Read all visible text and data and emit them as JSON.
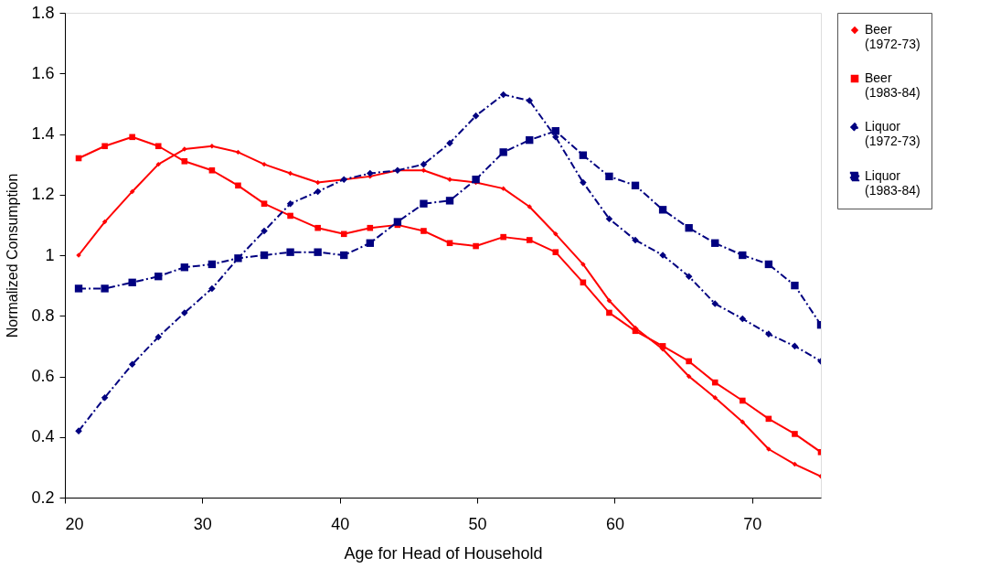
{
  "chart_data": {
    "type": "line",
    "xlabel": "Age for Head of Household",
    "ylabel": "Normalized Consumption",
    "x": [
      21.0,
      22.9,
      24.9,
      26.8,
      28.7,
      30.7,
      32.6,
      34.5,
      36.4,
      38.4,
      40.3,
      42.2,
      44.2,
      46.1,
      48.0,
      49.9,
      51.9,
      53.8,
      55.7,
      57.7,
      59.6,
      61.5,
      63.5,
      65.4,
      67.3,
      69.3,
      71.2,
      73.1,
      75.0
    ],
    "xlim": [
      20,
      75
    ],
    "xticks": [
      20,
      30,
      40,
      50,
      60,
      70
    ],
    "ylim": [
      0.2,
      1.8
    ],
    "yticks": [
      0.2,
      0.4,
      0.6,
      0.8,
      1,
      1.2,
      1.4,
      1.6,
      1.8
    ],
    "grid": false,
    "legend": "right",
    "series": [
      {
        "name": "Beer (1972-73)",
        "color": "#ff0000",
        "marker": "diamond",
        "line_style": "solid",
        "values": [
          1.0,
          1.11,
          1.21,
          1.3,
          1.35,
          1.36,
          1.34,
          1.3,
          1.27,
          1.24,
          1.25,
          1.26,
          1.28,
          1.28,
          1.25,
          1.24,
          1.22,
          1.16,
          1.07,
          0.97,
          0.85,
          0.76,
          0.69,
          0.6,
          0.53,
          0.45,
          0.36,
          0.31,
          0.27
        ]
      },
      {
        "name": "Beer (1983-84)",
        "color": "#ff0000",
        "marker": "square",
        "line_style": "solid",
        "values": [
          1.32,
          1.36,
          1.39,
          1.36,
          1.31,
          1.28,
          1.23,
          1.17,
          1.13,
          1.09,
          1.07,
          1.09,
          1.1,
          1.08,
          1.04,
          1.03,
          1.06,
          1.05,
          1.01,
          0.91,
          0.81,
          0.75,
          0.7,
          0.65,
          0.58,
          0.52,
          0.46,
          0.41,
          0.35
        ]
      },
      {
        "name": "Liquor (1972-73)",
        "color": "#000080",
        "marker": "diamond",
        "line_style": "dashed",
        "values": [
          0.42,
          0.53,
          0.64,
          0.73,
          0.81,
          0.89,
          0.99,
          1.08,
          1.17,
          1.21,
          1.25,
          1.27,
          1.28,
          1.3,
          1.37,
          1.46,
          1.53,
          1.51,
          1.39,
          1.24,
          1.12,
          1.05,
          1.0,
          0.93,
          0.84,
          0.79,
          0.74,
          0.7,
          0.65
        ]
      },
      {
        "name": "Liquor (1983-84)",
        "color": "#000080",
        "marker": "square",
        "line_style": "dashed",
        "values": [
          0.89,
          0.89,
          0.91,
          0.93,
          0.96,
          0.97,
          0.99,
          1.0,
          1.01,
          1.01,
          1.0,
          1.04,
          1.11,
          1.17,
          1.18,
          1.25,
          1.34,
          1.38,
          1.41,
          1.33,
          1.26,
          1.23,
          1.15,
          1.09,
          1.04,
          1.0,
          0.97,
          0.9,
          0.77
        ]
      }
    ]
  }
}
